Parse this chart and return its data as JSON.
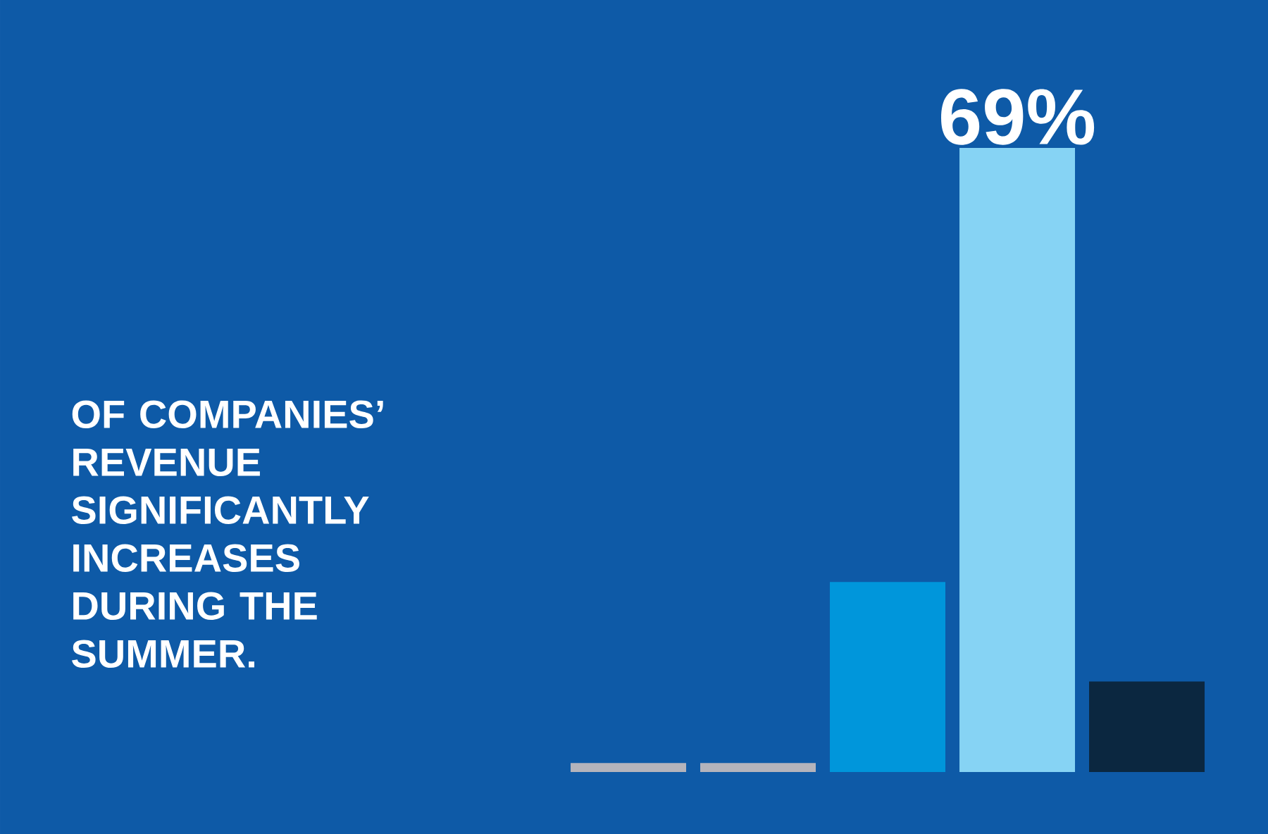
{
  "chart_data": {
    "type": "bar",
    "title": "OF COMPANIES’ REVENUE SIGNIFICANTLY INCREASES DURING THE SUMMER.",
    "categories": [
      null,
      null,
      null,
      null,
      null
    ],
    "values": [
      1,
      1,
      21,
      69,
      10
    ],
    "colors": [
      "#b4b4bc",
      "#b4b4bc",
      "#0096db",
      "#86d3f4",
      "#0b2740"
    ],
    "value_labels": [
      null,
      null,
      null,
      "69%",
      null
    ]
  }
}
